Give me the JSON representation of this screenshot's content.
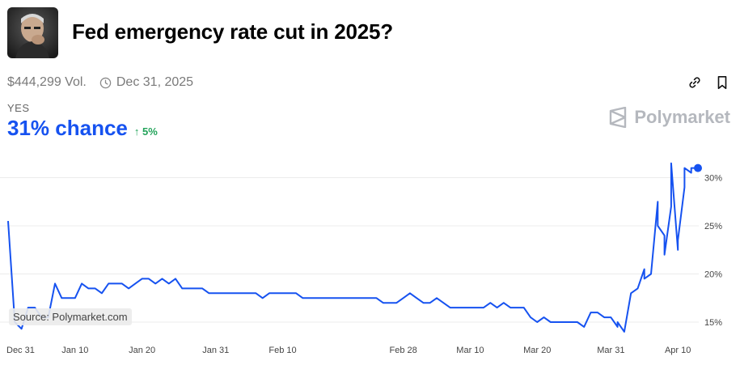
{
  "header": {
    "title": "Fed emergency rate cut in 2025?",
    "volume": "$444,299 Vol.",
    "end_date": "Dec 31, 2025"
  },
  "outcome": {
    "label": "YES",
    "chance": "31% chance",
    "delta": "5%"
  },
  "brand": {
    "name": "Polymarket"
  },
  "source": "Source: Polymarket.com",
  "icons": {
    "clock": "clock-icon",
    "link": "link-icon",
    "bookmark": "bookmark-icon",
    "delta": "arrow-up-icon"
  },
  "colors": {
    "line": "#1652f0",
    "delta": "#22a35a",
    "brand": "#b5b8be"
  },
  "chart_data": {
    "type": "line",
    "x_ticks": [
      "Dec 31",
      "Jan 10",
      "Jan 20",
      "Jan 31",
      "Feb 10",
      "Feb 28",
      "Mar 10",
      "Mar 20",
      "Mar 31",
      "Apr 10"
    ],
    "y_ticks": [
      "15%",
      "20%",
      "25%",
      "30%"
    ],
    "ylim": [
      13.5,
      32
    ],
    "grid": true,
    "series": [
      {
        "points": [
          [
            "Dec 31",
            25.5
          ],
          [
            "Jan 1",
            15
          ],
          [
            "Jan 2",
            14.3
          ],
          [
            "Jan 3",
            16.5
          ],
          [
            "Jan 4",
            16.5
          ],
          [
            "Jan 5",
            15.5
          ],
          [
            "Jan 6",
            15.5
          ],
          [
            "Jan 7",
            19
          ],
          [
            "Jan 8",
            17.5
          ],
          [
            "Jan 9",
            17.5
          ],
          [
            "Jan 10",
            17.5
          ],
          [
            "Jan 11",
            19
          ],
          [
            "Jan 12",
            18.5
          ],
          [
            "Jan 13",
            18.5
          ],
          [
            "Jan 14",
            18
          ],
          [
            "Jan 15",
            19
          ],
          [
            "Jan 16",
            19
          ],
          [
            "Jan 17",
            19
          ],
          [
            "Jan 18",
            18.5
          ],
          [
            "Jan 19",
            19
          ],
          [
            "Jan 20",
            19.5
          ],
          [
            "Jan 21",
            19.5
          ],
          [
            "Jan 22",
            19
          ],
          [
            "Jan 23",
            19.5
          ],
          [
            "Jan 24",
            19
          ],
          [
            "Jan 25",
            19.5
          ],
          [
            "Jan 26",
            18.5
          ],
          [
            "Jan 27",
            18.5
          ],
          [
            "Jan 28",
            18.5
          ],
          [
            "Jan 29",
            18.5
          ],
          [
            "Jan 30",
            18
          ],
          [
            "Jan 31",
            18
          ],
          [
            "Feb 2",
            18
          ],
          [
            "Feb 4",
            18
          ],
          [
            "Feb 6",
            18
          ],
          [
            "Feb 7",
            17.5
          ],
          [
            "Feb 8",
            18
          ],
          [
            "Feb 10",
            18
          ],
          [
            "Feb 12",
            18
          ],
          [
            "Feb 13",
            17.5
          ],
          [
            "Feb 16",
            17.5
          ],
          [
            "Feb 20",
            17.5
          ],
          [
            "Feb 24",
            17.5
          ],
          [
            "Feb 25",
            17
          ],
          [
            "Feb 27",
            17
          ],
          [
            "Feb 28",
            17.5
          ],
          [
            "Mar 1",
            18
          ],
          [
            "Mar 2",
            17.5
          ],
          [
            "Mar 3",
            17
          ],
          [
            "Mar 4",
            17
          ],
          [
            "Mar 5",
            17.5
          ],
          [
            "Mar 6",
            17
          ],
          [
            "Mar 7",
            16.5
          ],
          [
            "Mar 10",
            16.5
          ],
          [
            "Mar 12",
            16.5
          ],
          [
            "Mar 13",
            17
          ],
          [
            "Mar 14",
            16.5
          ],
          [
            "Mar 15",
            17
          ],
          [
            "Mar 16",
            16.5
          ],
          [
            "Mar 18",
            16.5
          ],
          [
            "Mar 19",
            15.5
          ],
          [
            "Mar 20",
            15
          ],
          [
            "Mar 21",
            15.5
          ],
          [
            "Mar 22",
            15
          ],
          [
            "Mar 26",
            15
          ],
          [
            "Mar 27",
            14.5
          ],
          [
            "Mar 28",
            16
          ],
          [
            "Mar 29",
            16
          ],
          [
            "Mar 30",
            15.5
          ],
          [
            "Mar 31",
            15.5
          ],
          [
            "Apr 1",
            14.5
          ],
          [
            "Apr 1",
            15
          ],
          [
            "Apr 2",
            14
          ],
          [
            "Apr 3",
            18
          ],
          [
            "Apr 4",
            18.5
          ],
          [
            "Apr 5",
            20.5
          ],
          [
            "Apr 5",
            19.5
          ],
          [
            "Apr 6",
            20
          ],
          [
            "Apr 7",
            27.5
          ],
          [
            "Apr 7",
            25
          ],
          [
            "Apr 8",
            24
          ],
          [
            "Apr 8",
            22
          ],
          [
            "Apr 9",
            27
          ],
          [
            "Apr 9",
            31.5
          ],
          [
            "Apr 10",
            22.5
          ],
          [
            "Apr 10",
            23.5
          ],
          [
            "Apr 11",
            29
          ],
          [
            "Apr 11",
            31
          ],
          [
            "Apr 12",
            30.5
          ],
          [
            "Apr 12",
            31
          ],
          [
            "Apr 13",
            31
          ]
        ]
      }
    ]
  }
}
